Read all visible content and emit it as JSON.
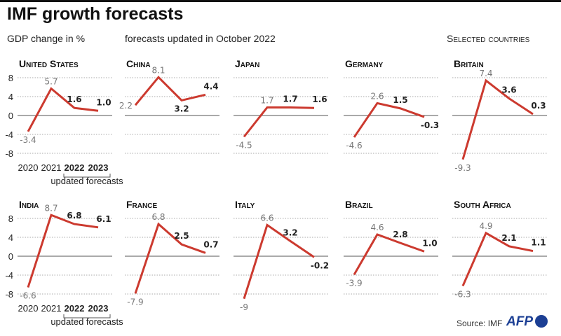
{
  "title": "IMF growth forecasts",
  "subtitle_left": "GDP change in %",
  "subtitle_center": "forecasts updated in October 2022",
  "subtitle_right": "Selected countries",
  "source": "Source: IMF",
  "logo": "AFP",
  "colors": {
    "line": "#cc3a2f",
    "logo": "#1c3f94"
  },
  "chart_data": {
    "type": "line",
    "x": [
      "2020",
      "2021",
      "2022",
      "2023"
    ],
    "ylim": [
      -8,
      8
    ],
    "yticks": [
      "8",
      "4",
      "0",
      "-4",
      "-8"
    ],
    "ytick_values": [
      8,
      4,
      0,
      -4,
      -8
    ],
    "annotation": "updated forecasts",
    "series": [
      {
        "name": "United States",
        "values": [
          -3.4,
          5.7,
          1.6,
          1.0
        ],
        "labels": [
          "-3.4",
          "5.7",
          "1.6",
          "1.0"
        ]
      },
      {
        "name": "China",
        "values": [
          2.2,
          8.1,
          3.2,
          4.4
        ],
        "labels": [
          "2.2",
          "8.1",
          "3.2",
          "4.4"
        ]
      },
      {
        "name": "Japan",
        "values": [
          -4.5,
          1.7,
          1.7,
          1.6
        ],
        "labels": [
          "-4.5",
          "1.7",
          "1.7",
          "1.6"
        ]
      },
      {
        "name": "Germany",
        "values": [
          -4.6,
          2.6,
          1.5,
          -0.3
        ],
        "labels": [
          "-4.6",
          "2.6",
          "1.5",
          "-0.3"
        ]
      },
      {
        "name": "Britain",
        "values": [
          -9.3,
          7.4,
          3.6,
          0.3
        ],
        "labels": [
          "-9.3",
          "7.4",
          "3.6",
          "0.3"
        ]
      },
      {
        "name": "India",
        "values": [
          -6.6,
          8.7,
          6.8,
          6.1
        ],
        "labels": [
          "-6.6",
          "8.7",
          "6.8",
          "6.1"
        ]
      },
      {
        "name": "France",
        "values": [
          -7.9,
          6.8,
          2.5,
          0.7
        ],
        "labels": [
          "-7.9",
          "6.8",
          "2.5",
          "0.7"
        ]
      },
      {
        "name": "Italy",
        "values": [
          -9,
          6.6,
          3.2,
          -0.2
        ],
        "labels": [
          "-9",
          "6.6",
          "3.2",
          "-0.2"
        ]
      },
      {
        "name": "Brazil",
        "values": [
          -3.9,
          4.6,
          2.8,
          1.0
        ],
        "labels": [
          "-3.9",
          "4.6",
          "2.8",
          "1.0"
        ]
      },
      {
        "name": "South Africa",
        "values": [
          -6.3,
          4.9,
          2.1,
          1.1
        ],
        "labels": [
          "-6.3",
          "4.9",
          "2.1",
          "1.1"
        ]
      }
    ]
  }
}
